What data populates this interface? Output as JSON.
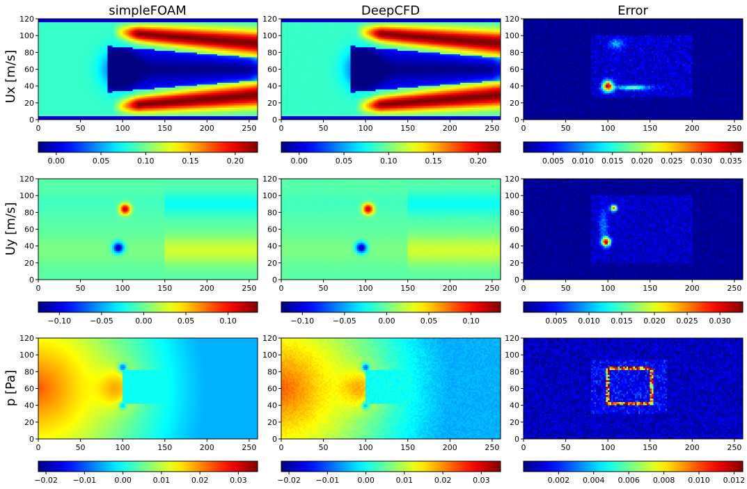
{
  "figure": {
    "columns": [
      "simpleFOAM",
      "DeepCFD",
      "Error"
    ],
    "rows": [
      "Ux [m/s]",
      "Uy [m/s]",
      "p [Pa]"
    ]
  },
  "colors": {
    "colormap": "jet",
    "background": "#ffffff",
    "axis": "#000000"
  },
  "chart_data": [
    {
      "type": "heatmap",
      "id": "ux-simplefoam",
      "title": "simpleFOAM",
      "ylabel": "Ux [m/s]",
      "field": "ux",
      "variant": "sim",
      "xlim": [
        0,
        260
      ],
      "ylim": [
        0,
        120
      ],
      "xticks": [
        0,
        50,
        100,
        150,
        200,
        250
      ],
      "yticks": [
        0,
        20,
        40,
        60,
        80,
        100,
        120
      ],
      "colorbar": {
        "min": -0.02,
        "max": 0.225,
        "ticks": [
          0.0,
          0.05,
          0.1,
          0.15,
          0.2
        ],
        "tick_labels": [
          "0.00",
          "0.05",
          "0.10",
          "0.15",
          "0.20"
        ]
      }
    },
    {
      "type": "heatmap",
      "id": "ux-deepcfd",
      "title": "DeepCFD",
      "field": "ux",
      "variant": "pred",
      "xlim": [
        0,
        260
      ],
      "ylim": [
        0,
        120
      ],
      "xticks": [
        0,
        50,
        100,
        150,
        200,
        250
      ],
      "yticks": [
        0,
        20,
        40,
        60,
        80,
        100,
        120
      ],
      "colorbar": {
        "min": -0.02,
        "max": 0.225,
        "ticks": [
          0.0,
          0.05,
          0.1,
          0.15,
          0.2
        ],
        "tick_labels": [
          "0.00",
          "0.05",
          "0.10",
          "0.15",
          "0.20"
        ]
      }
    },
    {
      "type": "heatmap",
      "id": "ux-error",
      "title": "Error",
      "field": "ux",
      "variant": "err",
      "xlim": [
        0,
        260
      ],
      "ylim": [
        0,
        120
      ],
      "xticks": [
        0,
        50,
        100,
        150,
        200,
        250
      ],
      "yticks": [
        0,
        20,
        40,
        60,
        80,
        100,
        120
      ],
      "colorbar": {
        "min": 0.0,
        "max": 0.037,
        "ticks": [
          0.005,
          0.01,
          0.015,
          0.02,
          0.025,
          0.03,
          0.035
        ],
        "tick_labels": [
          "0.005",
          "0.010",
          "0.015",
          "0.020",
          "0.025",
          "0.030",
          "0.035"
        ]
      }
    },
    {
      "type": "heatmap",
      "id": "uy-simplefoam",
      "ylabel": "Uy [m/s]",
      "field": "uy",
      "variant": "sim",
      "xlim": [
        0,
        260
      ],
      "ylim": [
        0,
        120
      ],
      "xticks": [
        0,
        50,
        100,
        150,
        200,
        250
      ],
      "yticks": [
        0,
        20,
        40,
        60,
        80,
        100,
        120
      ],
      "colorbar": {
        "min": -0.125,
        "max": 0.135,
        "ticks": [
          -0.1,
          -0.05,
          0.0,
          0.05,
          0.1
        ],
        "tick_labels": [
          "−0.10",
          "−0.05",
          "0.00",
          "0.05",
          "0.10"
        ]
      }
    },
    {
      "type": "heatmap",
      "id": "uy-deepcfd",
      "field": "uy",
      "variant": "pred",
      "xlim": [
        0,
        260
      ],
      "ylim": [
        0,
        120
      ],
      "xticks": [
        0,
        50,
        100,
        150,
        200,
        250
      ],
      "yticks": [
        0,
        20,
        40,
        60,
        80,
        100,
        120
      ],
      "colorbar": {
        "min": -0.125,
        "max": 0.135,
        "ticks": [
          -0.1,
          -0.05,
          0.0,
          0.05,
          0.1
        ],
        "tick_labels": [
          "−0.10",
          "−0.05",
          "0.00",
          "0.05",
          "0.10"
        ]
      }
    },
    {
      "type": "heatmap",
      "id": "uy-error",
      "field": "uy",
      "variant": "err",
      "xlim": [
        0,
        260
      ],
      "ylim": [
        0,
        120
      ],
      "xticks": [
        0,
        50,
        100,
        150,
        200,
        250
      ],
      "yticks": [
        0,
        20,
        40,
        60,
        80,
        100,
        120
      ],
      "colorbar": {
        "min": 0.0,
        "max": 0.0335,
        "ticks": [
          0.005,
          0.01,
          0.015,
          0.02,
          0.025,
          0.03
        ],
        "tick_labels": [
          "0.005",
          "0.010",
          "0.015",
          "0.020",
          "0.025",
          "0.030"
        ]
      }
    },
    {
      "type": "heatmap",
      "id": "p-simplefoam",
      "ylabel": "p [Pa]",
      "field": "p",
      "variant": "sim",
      "xlim": [
        0,
        260
      ],
      "ylim": [
        0,
        120
      ],
      "xticks": [
        0,
        50,
        100,
        150,
        200,
        250
      ],
      "yticks": [
        0,
        20,
        40,
        60,
        80,
        100,
        120
      ],
      "colorbar": {
        "min": -0.022,
        "max": 0.035,
        "ticks": [
          -0.02,
          -0.01,
          0.0,
          0.01,
          0.02,
          0.03
        ],
        "tick_labels": [
          "−0.02",
          "−0.01",
          "0.00",
          "0.01",
          "0.02",
          "0.03"
        ]
      }
    },
    {
      "type": "heatmap",
      "id": "p-deepcfd",
      "field": "p",
      "variant": "pred",
      "xlim": [
        0,
        260
      ],
      "ylim": [
        0,
        120
      ],
      "xticks": [
        0,
        50,
        100,
        150,
        200,
        250
      ],
      "yticks": [
        0,
        20,
        40,
        60,
        80,
        100,
        120
      ],
      "colorbar": {
        "min": -0.022,
        "max": 0.035,
        "ticks": [
          -0.02,
          -0.01,
          0.0,
          0.01,
          0.02,
          0.03
        ],
        "tick_labels": [
          "−0.02",
          "−0.01",
          "0.00",
          "0.01",
          "0.02",
          "0.03"
        ]
      }
    },
    {
      "type": "heatmap",
      "id": "p-error",
      "field": "p",
      "variant": "err",
      "xlim": [
        0,
        260
      ],
      "ylim": [
        0,
        120
      ],
      "xticks": [
        0,
        50,
        100,
        150,
        200,
        250
      ],
      "yticks": [
        0,
        20,
        40,
        60,
        80,
        100,
        120
      ],
      "colorbar": {
        "min": 0.0,
        "max": 0.0125,
        "ticks": [
          0.002,
          0.004,
          0.006,
          0.008,
          0.01,
          0.012
        ],
        "tick_labels": [
          "0.002",
          "0.004",
          "0.006",
          "0.008",
          "0.010",
          "0.012"
        ]
      }
    }
  ]
}
